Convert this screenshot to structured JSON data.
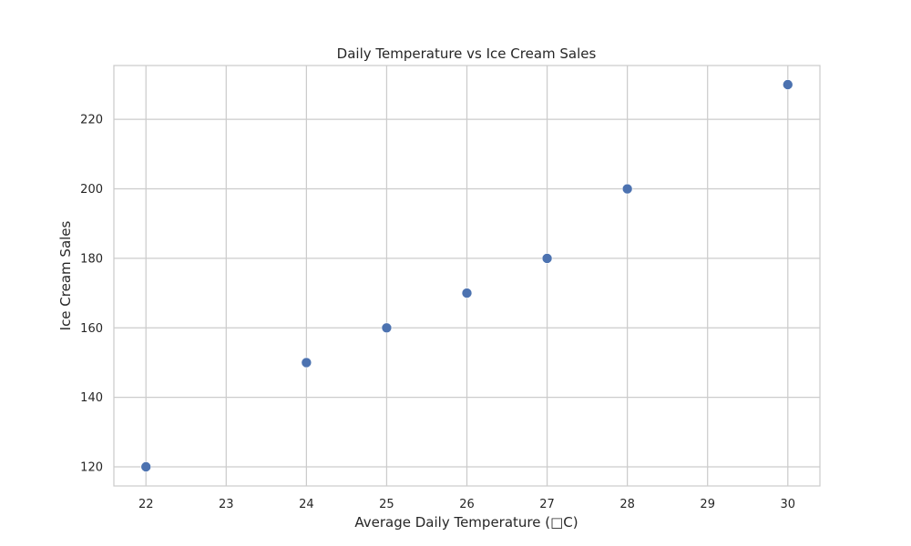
{
  "chart_data": {
    "type": "scatter",
    "title": "Daily Temperature vs Ice Cream Sales",
    "xlabel": "Average Daily Temperature (□C)",
    "ylabel": "Ice Cream Sales",
    "x": [
      22,
      24,
      25,
      26,
      27,
      28,
      30
    ],
    "y": [
      120,
      150,
      160,
      170,
      180,
      200,
      230
    ],
    "xlim": [
      21.6,
      30.4
    ],
    "ylim": [
      114.5,
      235.5
    ],
    "xticks": [
      "22",
      "23",
      "24",
      "25",
      "26",
      "27",
      "28",
      "29",
      "30"
    ],
    "yticks": [
      "120",
      "140",
      "160",
      "180",
      "200",
      "220"
    ],
    "grid": true,
    "marker_color": "#4c72b0"
  }
}
